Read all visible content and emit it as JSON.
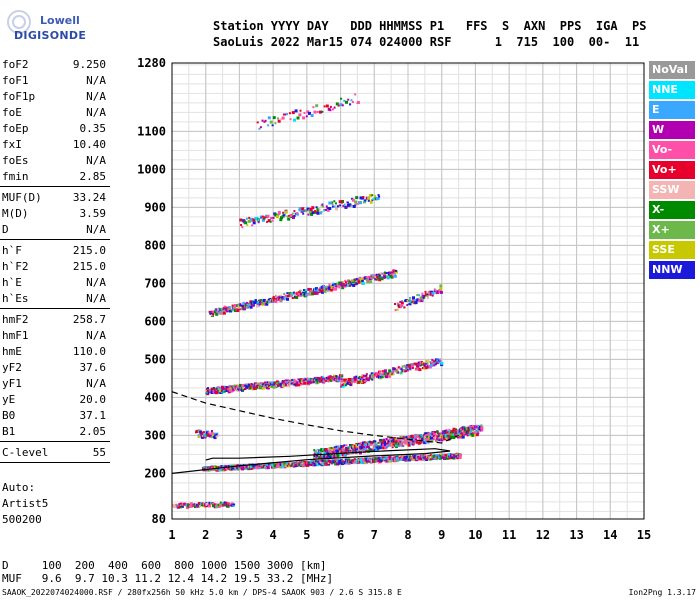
{
  "logo": {
    "line1": "Lowell",
    "line2": "DIGISONDE"
  },
  "header": {
    "line1": "Station YYYY DAY   DDD HHMMSS P1   FFS  S  AXN  PPS  IGA  PS",
    "line2": "SaoLuis 2022 Mar15 074 024000 RSF      1  715  100  00-  11"
  },
  "params": [
    {
      "name": "foF2",
      "value": "9.250"
    },
    {
      "name": "foF1",
      "value": "N/A"
    },
    {
      "name": "foF1p",
      "value": "N/A"
    },
    {
      "name": "foE",
      "value": "N/A"
    },
    {
      "name": "foEp",
      "value": "0.35"
    },
    {
      "name": "fxI",
      "value": "10.40"
    },
    {
      "name": "foEs",
      "value": "N/A"
    },
    {
      "name": "fmin",
      "value": "2.85"
    },
    {
      "sep": true
    },
    {
      "name": "MUF(D)",
      "value": "33.24"
    },
    {
      "name": "M(D)",
      "value": "3.59"
    },
    {
      "name": "D",
      "value": "N/A"
    },
    {
      "sep": true
    },
    {
      "name": "h`F",
      "value": "215.0"
    },
    {
      "name": "h`F2",
      "value": "215.0"
    },
    {
      "name": "h`E",
      "value": "N/A"
    },
    {
      "name": "h`Es",
      "value": "N/A"
    },
    {
      "sep": true
    },
    {
      "name": "hmF2",
      "value": "258.7"
    },
    {
      "name": "hmF1",
      "value": "N/A"
    },
    {
      "name": "hmE",
      "value": "110.0"
    },
    {
      "name": "yF2",
      "value": "37.6"
    },
    {
      "name": "yF1",
      "value": "N/A"
    },
    {
      "name": "yE",
      "value": "20.0"
    },
    {
      "name": "B0",
      "value": "37.1"
    },
    {
      "name": "B1",
      "value": "2.05"
    },
    {
      "sep": true
    },
    {
      "name": "C-level",
      "value": "55"
    },
    {
      "sep": true
    }
  ],
  "auto": {
    "line1": "Auto:",
    "line2": "Artist5",
    "line3": "500200"
  },
  "footer": {
    "line1": "D     100  200  400  600  800 1000 1500 3000 [km]",
    "line2": "MUF   9.6  9.7 10.3 11.2 12.4 14.2 19.5 33.2 [MHz]",
    "line3": "SAAOK_2022074024000.RSF / 280fx256h 50 kHz 5.0 km / DPS-4 SAAOK 903 / 2.6 S 315.8 E",
    "version": "Ion2Png 1.3.17"
  },
  "legend": [
    {
      "label": "NoVal",
      "color": "#999999"
    },
    {
      "label": "NNE",
      "color": "#00e5ff"
    },
    {
      "label": "E",
      "color": "#3aa8ff"
    },
    {
      "label": "W",
      "color": "#b000b0"
    },
    {
      "label": "Vo-",
      "color": "#ff4fa8"
    },
    {
      "label": "Vo+",
      "color": "#e8002c"
    },
    {
      "label": "SSW",
      "color": "#f4b4b4"
    },
    {
      "label": "X-",
      "color": "#008a00"
    },
    {
      "label": "X+",
      "color": "#6cb84a"
    },
    {
      "label": "SSE",
      "color": "#c8c800"
    },
    {
      "label": "NNW",
      "color": "#1a1ad8"
    }
  ],
  "chart_data": {
    "type": "scatter",
    "xlim": [
      1,
      15
    ],
    "ylim": [
      80,
      1280
    ],
    "xticks": [
      1,
      2,
      3,
      4,
      5,
      6,
      7,
      8,
      9,
      10,
      11,
      12,
      13,
      14,
      15
    ],
    "yticks": [
      80,
      200,
      300,
      400,
      500,
      600,
      700,
      800,
      900,
      1000,
      1100,
      1280
    ],
    "grid": true,
    "traces": [
      {
        "x0": 1.9,
        "x1": 9.5,
        "h0": 215,
        "h1": 250,
        "width": 10,
        "density": 1.0
      },
      {
        "x0": 5.2,
        "x1": 10.2,
        "h0": 252,
        "h1": 320,
        "width": 25,
        "density": 0.9
      },
      {
        "x0": 2.0,
        "x1": 6.0,
        "h0": 420,
        "h1": 455,
        "width": 14,
        "density": 0.8
      },
      {
        "x0": 6.0,
        "x1": 9.0,
        "h0": 440,
        "h1": 500,
        "width": 18,
        "density": 0.5
      },
      {
        "x0": 2.1,
        "x1": 7.6,
        "h0": 625,
        "h1": 730,
        "width": 16,
        "density": 0.5
      },
      {
        "x0": 7.6,
        "x1": 9.0,
        "h0": 640,
        "h1": 690,
        "width": 20,
        "density": 0.3
      },
      {
        "x0": 3.0,
        "x1": 7.1,
        "h0": 860,
        "h1": 930,
        "width": 22,
        "density": 0.25
      },
      {
        "x0": 3.5,
        "x1": 6.5,
        "h0": 1120,
        "h1": 1190,
        "width": 25,
        "density": 0.12
      },
      {
        "x0": 1.7,
        "x1": 2.3,
        "h0": 308,
        "h1": 305,
        "width": 18,
        "density": 0.4
      },
      {
        "x0": 1.0,
        "x1": 2.8,
        "h0": 118,
        "h1": 122,
        "width": 10,
        "density": 0.4
      }
    ],
    "profile_solid": [
      [
        1.0,
        200
      ],
      [
        3.0,
        220
      ],
      [
        5.0,
        236
      ],
      [
        7.0,
        246
      ],
      [
        8.5,
        252
      ],
      [
        9.25,
        259
      ],
      [
        8.8,
        265
      ],
      [
        7.5,
        260
      ],
      [
        6.0,
        253
      ],
      [
        4.5,
        245
      ],
      [
        3.0,
        240
      ],
      [
        2.2,
        240
      ],
      [
        2.0,
        235
      ]
    ],
    "profile_dashed": [
      [
        1.0,
        415
      ],
      [
        2.0,
        385
      ],
      [
        3.0,
        365
      ],
      [
        4.0,
        345
      ],
      [
        5.0,
        328
      ],
      [
        6.0,
        312
      ],
      [
        7.0,
        300
      ],
      [
        8.0,
        290
      ],
      [
        9.0,
        280
      ],
      [
        9.5,
        300
      ]
    ]
  }
}
